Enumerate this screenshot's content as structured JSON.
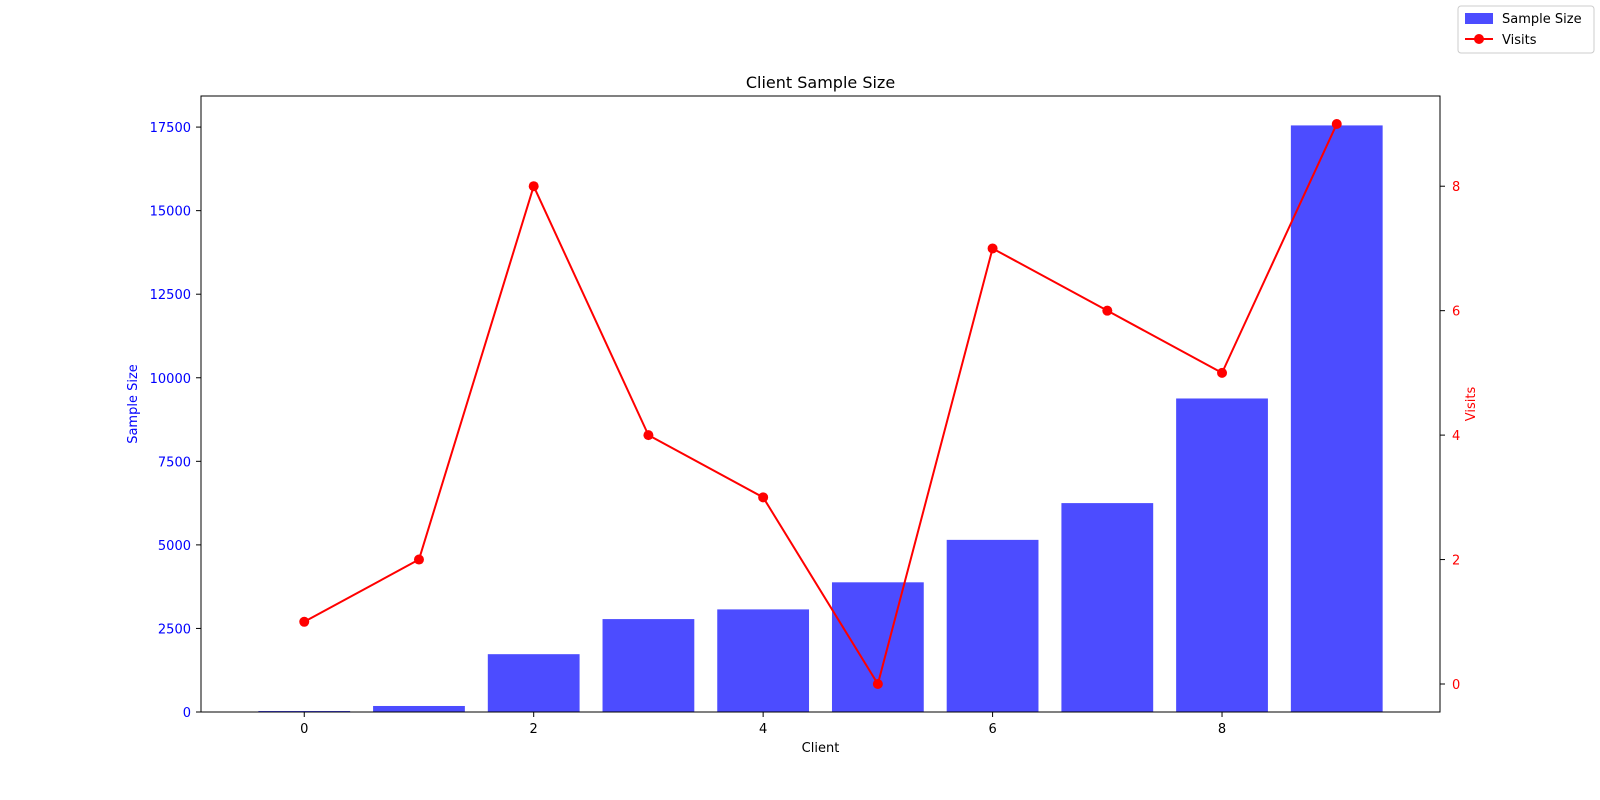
{
  "chart_data": {
    "type": "bar",
    "title": "Client Sample Size",
    "xlabel": "Client",
    "categories": [
      0,
      1,
      2,
      3,
      4,
      5,
      6,
      7,
      8,
      9
    ],
    "x_ticks": [
      0,
      2,
      4,
      6,
      8
    ],
    "xlim": [
      -0.9,
      9.9
    ],
    "series": [
      {
        "name": "Sample Size",
        "type": "bar",
        "axis": "left",
        "color": "#4c4cff",
        "values": [
          30,
          180,
          1730,
          2780,
          3070,
          3880,
          5150,
          6250,
          9380,
          17550
        ]
      },
      {
        "name": "Visits",
        "type": "line",
        "axis": "right",
        "color": "#ff0000",
        "marker": "circle",
        "values": [
          1,
          2,
          8,
          4,
          3,
          0,
          7,
          6,
          5,
          9
        ]
      }
    ],
    "y_left": {
      "label": "Sample Size",
      "color": "#0000ff",
      "lim": [
        0,
        18430
      ],
      "ticks": [
        0,
        2500,
        5000,
        7500,
        10000,
        12500,
        15000,
        17500
      ]
    },
    "y_right": {
      "label": "Visits",
      "color": "#ff0000",
      "lim": [
        -0.45,
        9.45
      ],
      "ticks": [
        0,
        2,
        4,
        6,
        8
      ]
    },
    "grid": false,
    "legend": {
      "placement": "top-right",
      "entries": [
        "Sample Size",
        "Visits"
      ]
    }
  }
}
